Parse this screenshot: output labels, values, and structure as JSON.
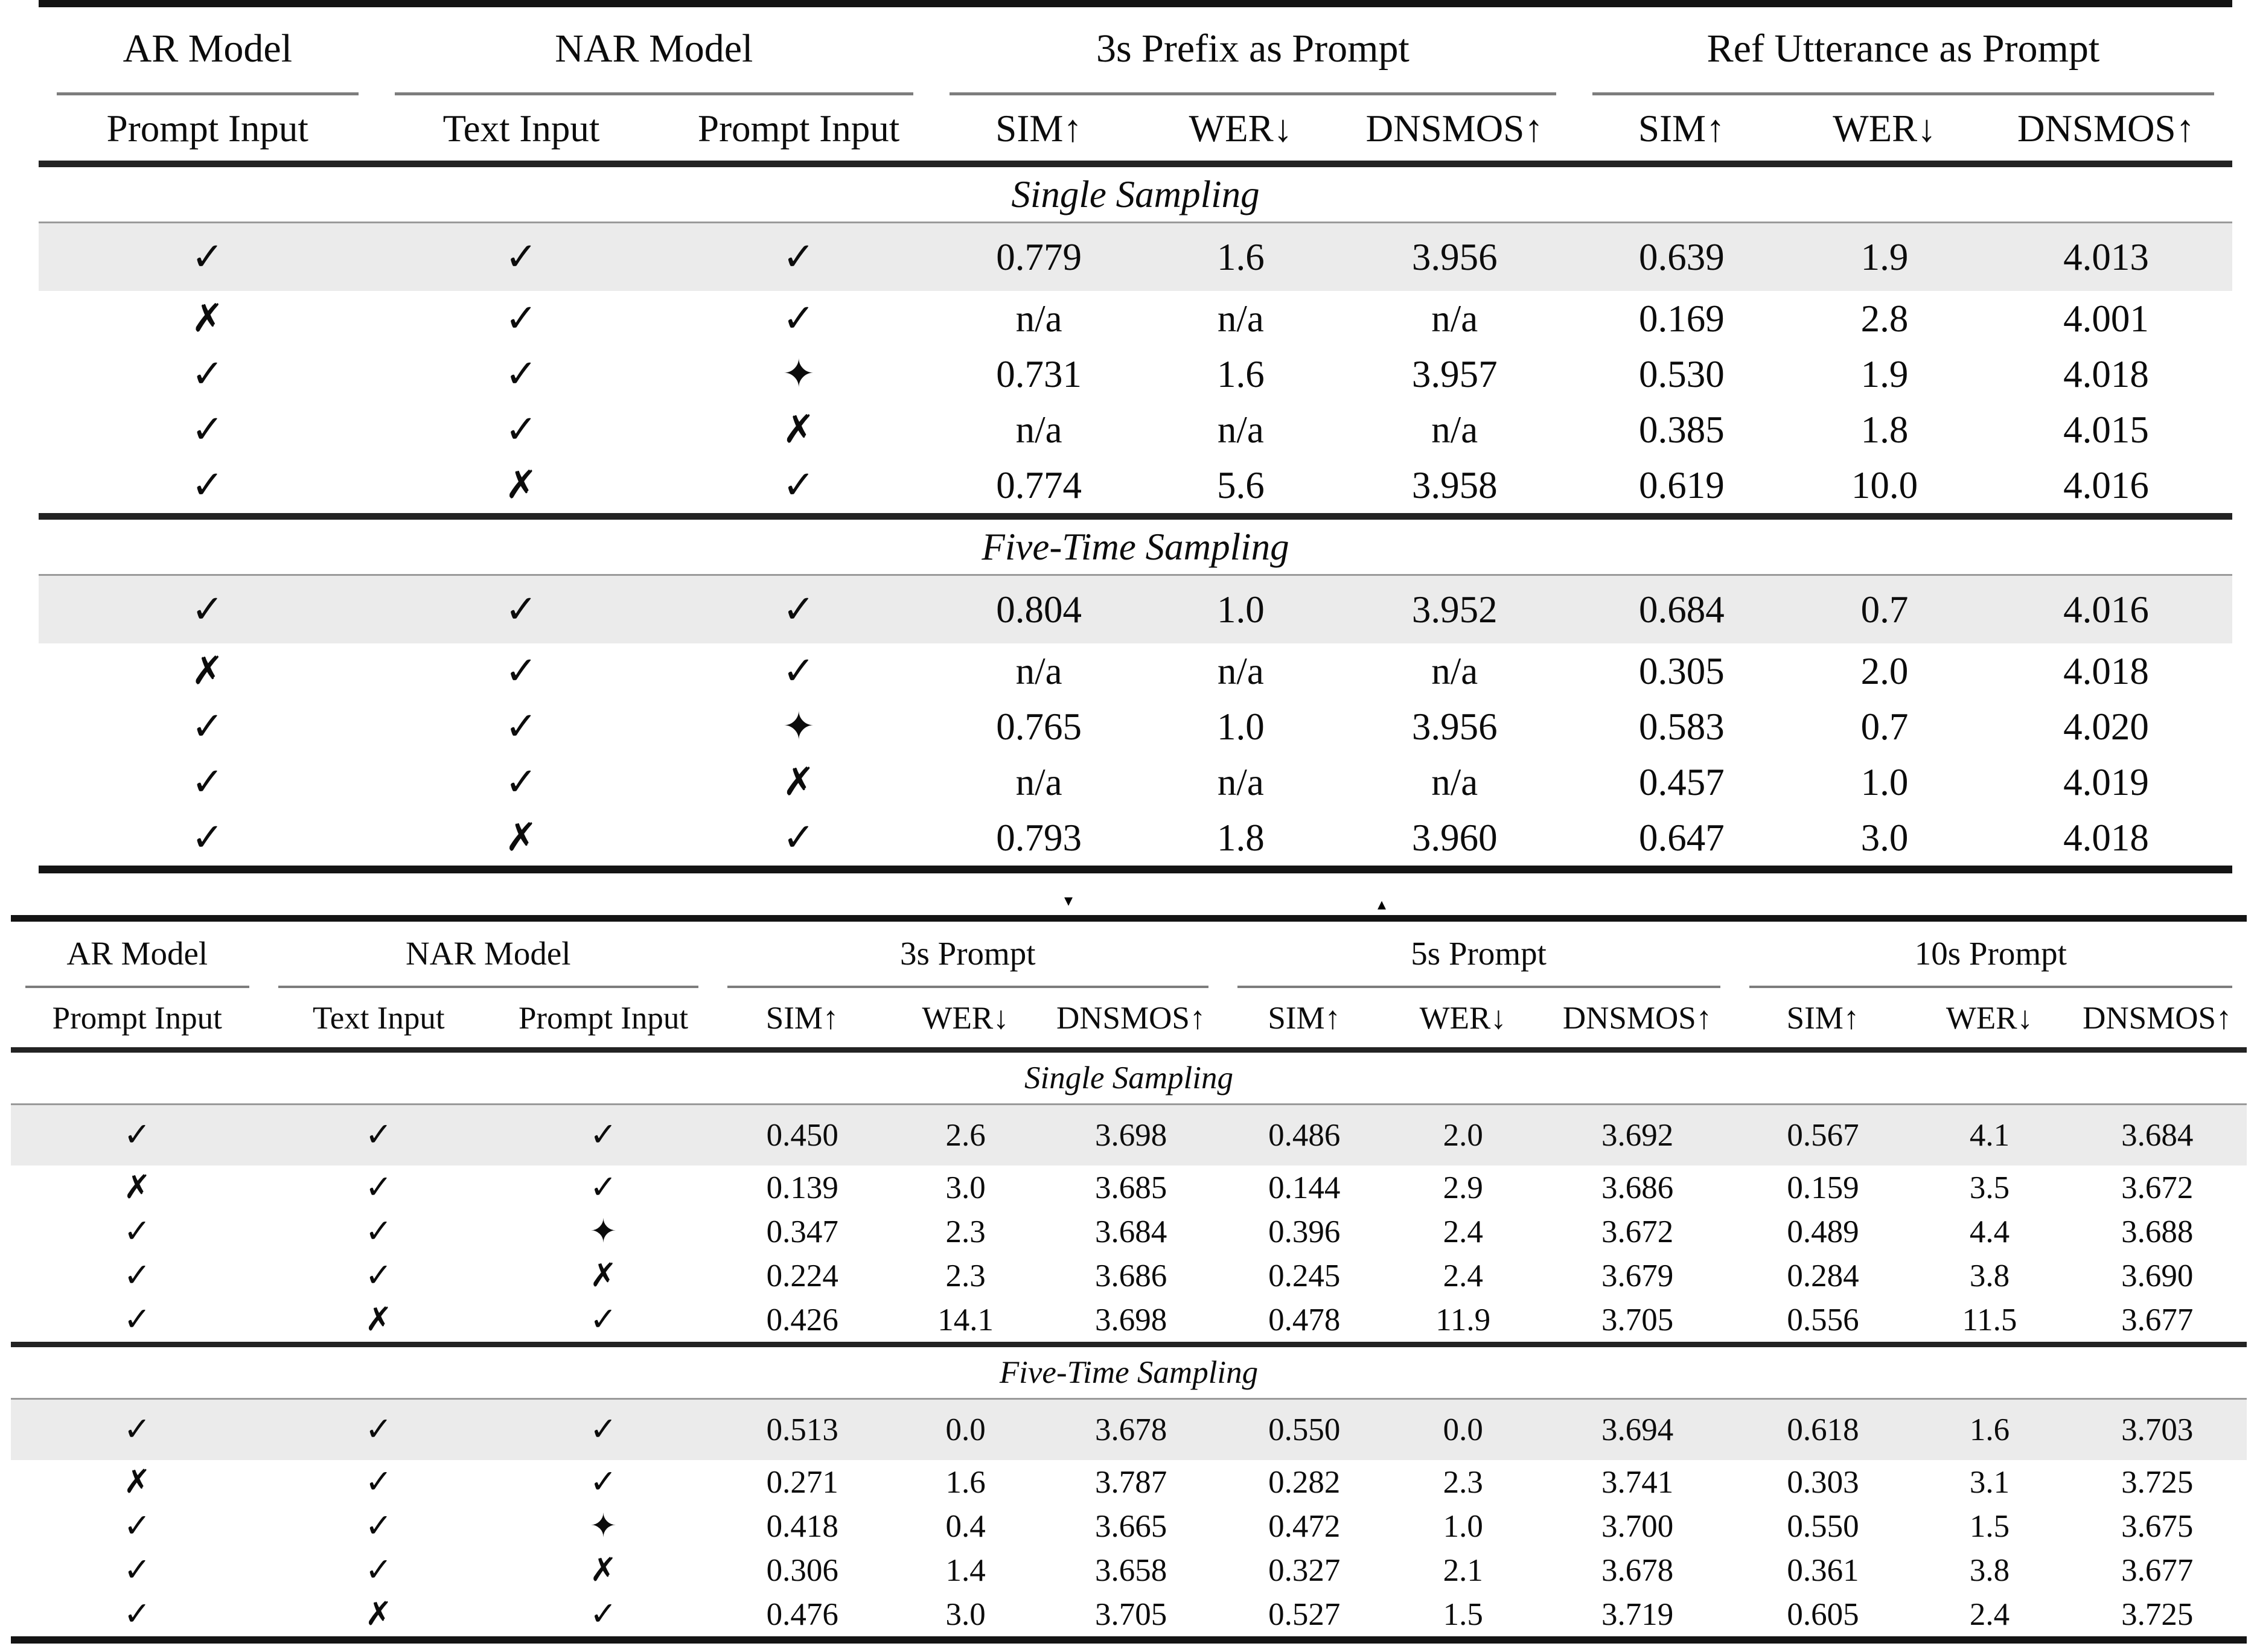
{
  "page": {
    "background": "#ffffff",
    "text_color": "#0c0c0c",
    "highlight_color": "#ebebeb",
    "rule_color_heavy": "#141414",
    "rule_color_light": "#9a9a9a"
  },
  "symbols": {
    "check": "✓",
    "cross": "✗",
    "diamond": "✦"
  },
  "artifacts": {
    "mark_down": "▾",
    "mark_up": "▴"
  },
  "tables": [
    {
      "name": "ablation-prefix-vs-ref-utterance",
      "groups": [
        {
          "label": "AR Model",
          "columns": [
            "Prompt Input"
          ]
        },
        {
          "label": "NAR Model",
          "columns": [
            "Text Input",
            "Prompt Input"
          ]
        },
        {
          "label": "3s Prefix as Prompt",
          "columns": [
            "SIM↑",
            "WER↓",
            "DNSMOS↑"
          ]
        },
        {
          "label": "Ref Utterance as Prompt",
          "columns": [
            "SIM↑",
            "WER↓",
            "DNSMOS↑"
          ]
        }
      ],
      "col_widths_pct": [
        15.4,
        13.2,
        12.1,
        9.8,
        8.6,
        10.9,
        9.8,
        8.7,
        11.5
      ],
      "sections": [
        {
          "title": "Single Sampling",
          "rows": [
            {
              "marks": [
                "check",
                "check",
                "check"
              ],
              "values": [
                "0.779",
                "1.6",
                "3.956",
                "0.639",
                "1.9",
                "4.013"
              ],
              "highlight": true
            },
            {
              "marks": [
                "cross",
                "check",
                "check"
              ],
              "values": [
                "n/a",
                "n/a",
                "n/a",
                "0.169",
                "2.8",
                "4.001"
              ],
              "highlight": false
            },
            {
              "marks": [
                "check",
                "check",
                "diamond"
              ],
              "values": [
                "0.731",
                "1.6",
                "3.957",
                "0.530",
                "1.9",
                "4.018"
              ],
              "highlight": false
            },
            {
              "marks": [
                "check",
                "check",
                "cross"
              ],
              "values": [
                "n/a",
                "n/a",
                "n/a",
                "0.385",
                "1.8",
                "4.015"
              ],
              "highlight": false
            },
            {
              "marks": [
                "check",
                "cross",
                "check"
              ],
              "values": [
                "0.774",
                "5.6",
                "3.958",
                "0.619",
                "10.0",
                "4.016"
              ],
              "highlight": false
            }
          ]
        },
        {
          "title": "Five-Time Sampling",
          "rows": [
            {
              "marks": [
                "check",
                "check",
                "check"
              ],
              "values": [
                "0.804",
                "1.0",
                "3.952",
                "0.684",
                "0.7",
                "4.016"
              ],
              "highlight": true
            },
            {
              "marks": [
                "cross",
                "check",
                "check"
              ],
              "values": [
                "n/a",
                "n/a",
                "n/a",
                "0.305",
                "2.0",
                "4.018"
              ],
              "highlight": false
            },
            {
              "marks": [
                "check",
                "check",
                "diamond"
              ],
              "values": [
                "0.765",
                "1.0",
                "3.956",
                "0.583",
                "0.7",
                "4.020"
              ],
              "highlight": false
            },
            {
              "marks": [
                "check",
                "check",
                "cross"
              ],
              "values": [
                "n/a",
                "n/a",
                "n/a",
                "0.457",
                "1.0",
                "4.019"
              ],
              "highlight": false
            },
            {
              "marks": [
                "check",
                "cross",
                "check"
              ],
              "values": [
                "0.793",
                "1.8",
                "3.960",
                "0.647",
                "3.0",
                "4.018"
              ],
              "highlight": false
            }
          ]
        }
      ]
    },
    {
      "name": "ablation-prompt-length",
      "groups": [
        {
          "label": "AR Model",
          "columns": [
            "Prompt Input"
          ]
        },
        {
          "label": "NAR Model",
          "columns": [
            "Text Input",
            "Prompt Input"
          ]
        },
        {
          "label": "3s Prompt",
          "columns": [
            "SIM↑",
            "WER↓",
            "DNSMOS↑"
          ]
        },
        {
          "label": "5s Prompt",
          "columns": [
            "SIM↑",
            "WER↓",
            "DNSMOS↑"
          ]
        },
        {
          "label": "10s Prompt",
          "columns": [
            "SIM↑",
            "WER↓",
            "DNSMOS↑"
          ]
        }
      ],
      "col_widths_pct": [
        11.3,
        10.3,
        9.8,
        8.0,
        6.6,
        8.2,
        7.3,
        6.9,
        8.7,
        7.9,
        7.0,
        8.0
      ],
      "sections": [
        {
          "title": "Single Sampling",
          "rows": [
            {
              "marks": [
                "check",
                "check",
                "check"
              ],
              "values": [
                "0.450",
                "2.6",
                "3.698",
                "0.486",
                "2.0",
                "3.692",
                "0.567",
                "4.1",
                "3.684"
              ],
              "highlight": true
            },
            {
              "marks": [
                "cross",
                "check",
                "check"
              ],
              "values": [
                "0.139",
                "3.0",
                "3.685",
                "0.144",
                "2.9",
                "3.686",
                "0.159",
                "3.5",
                "3.672"
              ],
              "highlight": false
            },
            {
              "marks": [
                "check",
                "check",
                "diamond"
              ],
              "values": [
                "0.347",
                "2.3",
                "3.684",
                "0.396",
                "2.4",
                "3.672",
                "0.489",
                "4.4",
                "3.688"
              ],
              "highlight": false
            },
            {
              "marks": [
                "check",
                "check",
                "cross"
              ],
              "values": [
                "0.224",
                "2.3",
                "3.686",
                "0.245",
                "2.4",
                "3.679",
                "0.284",
                "3.8",
                "3.690"
              ],
              "highlight": false
            },
            {
              "marks": [
                "check",
                "cross",
                "check"
              ],
              "values": [
                "0.426",
                "14.1",
                "3.698",
                "0.478",
                "11.9",
                "3.705",
                "0.556",
                "11.5",
                "3.677"
              ],
              "highlight": false
            }
          ]
        },
        {
          "title": "Five-Time Sampling",
          "rows": [
            {
              "marks": [
                "check",
                "check",
                "check"
              ],
              "values": [
                "0.513",
                "0.0",
                "3.678",
                "0.550",
                "0.0",
                "3.694",
                "0.618",
                "1.6",
                "3.703"
              ],
              "highlight": true
            },
            {
              "marks": [
                "cross",
                "check",
                "check"
              ],
              "values": [
                "0.271",
                "1.6",
                "3.787",
                "0.282",
                "2.3",
                "3.741",
                "0.303",
                "3.1",
                "3.725"
              ],
              "highlight": false
            },
            {
              "marks": [
                "check",
                "check",
                "diamond"
              ],
              "values": [
                "0.418",
                "0.4",
                "3.665",
                "0.472",
                "1.0",
                "3.700",
                "0.550",
                "1.5",
                "3.675"
              ],
              "highlight": false
            },
            {
              "marks": [
                "check",
                "check",
                "cross"
              ],
              "values": [
                "0.306",
                "1.4",
                "3.658",
                "0.327",
                "2.1",
                "3.678",
                "0.361",
                "3.8",
                "3.677"
              ],
              "highlight": false
            },
            {
              "marks": [
                "check",
                "cross",
                "check"
              ],
              "values": [
                "0.476",
                "3.0",
                "3.705",
                "0.527",
                "1.5",
                "3.719",
                "0.605",
                "2.4",
                "3.725"
              ],
              "highlight": false
            }
          ]
        }
      ]
    }
  ]
}
